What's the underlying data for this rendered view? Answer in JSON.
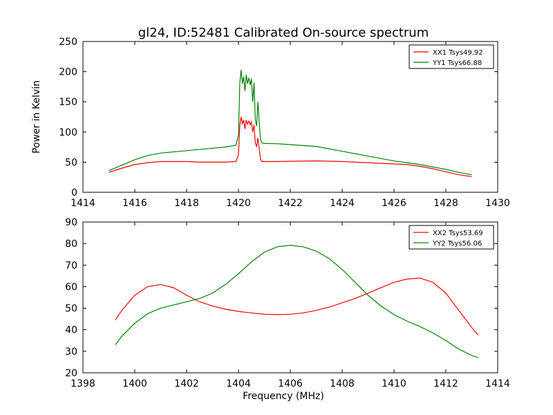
{
  "figure": {
    "title": "gl24, ID:52481 Calibrated On-source spectrum",
    "xlabel": "Frequency (MHz)"
  },
  "chart_data": [
    {
      "type": "line",
      "title": "gl24, ID:52481 Calibrated On-source spectrum",
      "xlabel": "",
      "ylabel": "Power in Kelvin",
      "xlim": [
        1414,
        1430
      ],
      "ylim": [
        0,
        250
      ],
      "xticks": [
        1414,
        1416,
        1418,
        1420,
        1422,
        1424,
        1426,
        1428,
        1430
      ],
      "yticks": [
        0,
        50,
        100,
        150,
        200,
        250
      ],
      "grid": false,
      "legend_position": "top-right",
      "series": [
        {
          "name": "XX1 Tsys49.92",
          "color": "#ff0000",
          "x": [
            1415.0,
            1415.5,
            1416.0,
            1416.5,
            1417.0,
            1417.5,
            1418.0,
            1418.5,
            1419.0,
            1419.5,
            1419.9,
            1420.0,
            1420.05,
            1420.1,
            1420.15,
            1420.2,
            1420.25,
            1420.3,
            1420.35,
            1420.4,
            1420.45,
            1420.5,
            1420.55,
            1420.6,
            1420.65,
            1420.7,
            1420.75,
            1420.8,
            1420.85,
            1420.9,
            1421.0,
            1421.5,
            1422.0,
            1423.0,
            1424.0,
            1425.0,
            1426.0,
            1426.5,
            1427.0,
            1427.5,
            1428.0,
            1428.5,
            1429.0
          ],
          "y": [
            33,
            40,
            46,
            49,
            51,
            51,
            51,
            50,
            50,
            50,
            51,
            62,
            110,
            125,
            113,
            120,
            105,
            120,
            113,
            118,
            112,
            117,
            100,
            112,
            82,
            75,
            90,
            72,
            55,
            51,
            51,
            51,
            51.5,
            52,
            51,
            49,
            47,
            46,
            43,
            39,
            34,
            29,
            26
          ]
        },
        {
          "name": "YY1 Tsys66.88",
          "color": "#008000",
          "x": [
            1415.0,
            1415.5,
            1416.0,
            1416.5,
            1417.0,
            1417.5,
            1418.0,
            1418.5,
            1419.0,
            1419.5,
            1419.9,
            1420.0,
            1420.05,
            1420.1,
            1420.15,
            1420.2,
            1420.25,
            1420.3,
            1420.35,
            1420.4,
            1420.45,
            1420.5,
            1420.55,
            1420.6,
            1420.65,
            1420.7,
            1420.75,
            1420.8,
            1420.85,
            1420.9,
            1421.0,
            1421.5,
            1422.0,
            1423.0,
            1424.0,
            1425.0,
            1426.0,
            1426.5,
            1427.0,
            1427.5,
            1428.0,
            1428.5,
            1429.0
          ],
          "y": [
            36,
            45,
            54,
            61,
            65,
            67,
            69,
            71,
            73,
            75,
            78,
            95,
            180,
            203,
            180,
            192,
            168,
            195,
            180,
            190,
            178,
            188,
            150,
            182,
            120,
            110,
            150,
            116,
            88,
            82,
            81,
            80.5,
            79,
            76,
            68,
            60,
            52,
            49,
            46,
            42,
            38,
            33,
            29
          ]
        }
      ]
    },
    {
      "type": "line",
      "title": "",
      "xlabel": "Frequency (MHz)",
      "ylabel": "",
      "xlim": [
        1398,
        1414
      ],
      "ylim": [
        20,
        90
      ],
      "xticks": [
        1398,
        1400,
        1402,
        1404,
        1406,
        1408,
        1410,
        1412,
        1414
      ],
      "yticks": [
        20,
        30,
        40,
        50,
        60,
        70,
        80,
        90
      ],
      "grid": false,
      "legend_position": "top-right",
      "series": [
        {
          "name": "XX2 Tsys53.69",
          "color": "#ff0000",
          "x": [
            1399.25,
            1399.5,
            1400.0,
            1400.5,
            1401.0,
            1401.5,
            1402.0,
            1402.5,
            1403.0,
            1403.5,
            1404.0,
            1404.5,
            1405.0,
            1405.5,
            1406.0,
            1406.5,
            1407.0,
            1407.5,
            1408.0,
            1408.5,
            1409.0,
            1409.5,
            1410.0,
            1410.5,
            1411.0,
            1411.5,
            1412.0,
            1412.5,
            1413.0,
            1413.25
          ],
          "y": [
            44.5,
            49,
            56,
            60,
            61,
            59.5,
            56,
            53,
            51,
            49.5,
            48.5,
            47.8,
            47.2,
            47.0,
            47.2,
            47.8,
            49,
            50.5,
            52.5,
            54.5,
            57,
            59.5,
            62,
            63.5,
            64,
            62,
            57,
            49,
            41,
            37.5
          ]
        },
        {
          "name": "YY2 Tsys56.06",
          "color": "#008000",
          "x": [
            1399.25,
            1399.5,
            1400.0,
            1400.5,
            1401.0,
            1401.5,
            1402.0,
            1402.5,
            1403.0,
            1403.5,
            1404.0,
            1404.5,
            1405.0,
            1405.5,
            1406.0,
            1406.5,
            1407.0,
            1407.5,
            1408.0,
            1408.5,
            1409.0,
            1409.5,
            1410.0,
            1410.5,
            1411.0,
            1411.5,
            1412.0,
            1412.5,
            1413.0,
            1413.25
          ],
          "y": [
            33,
            37,
            43,
            47.5,
            50,
            51.5,
            53,
            54.5,
            57,
            61,
            66,
            71.5,
            76,
            78.5,
            79.2,
            78.5,
            76.5,
            73,
            68,
            62,
            56,
            51,
            47,
            44,
            41.5,
            38.5,
            35,
            31,
            28,
            27
          ]
        }
      ]
    }
  ]
}
